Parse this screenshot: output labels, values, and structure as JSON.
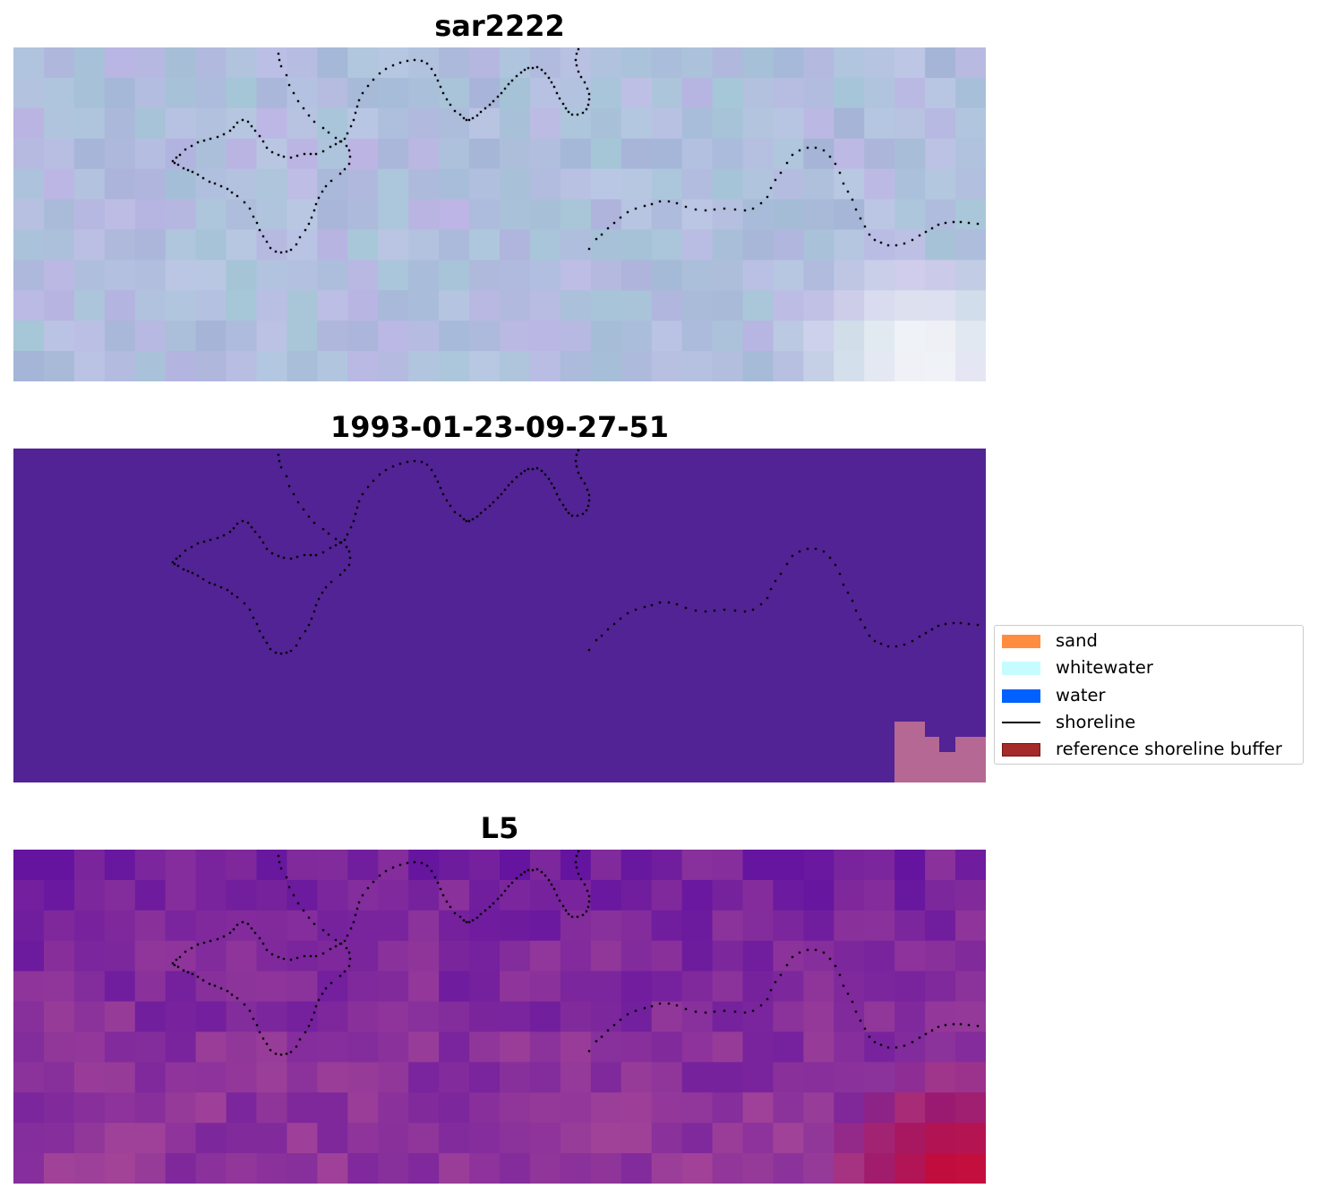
{
  "panels": [
    {
      "title": "sar2222",
      "style": "rgb-composite"
    },
    {
      "title": "1993-01-23-09-27-51",
      "style": "classification"
    },
    {
      "title": "L5",
      "style": "index"
    }
  ],
  "legend": {
    "items": [
      {
        "label": "sand",
        "kind": "patch",
        "color": "#ff8c40"
      },
      {
        "label": "whitewater",
        "kind": "patch",
        "color": "#c6fcfe"
      },
      {
        "label": "water",
        "kind": "patch",
        "color": "#0061ff"
      },
      {
        "label": "shoreline",
        "kind": "line",
        "color": "#000000"
      },
      {
        "label": "reference shoreline buffer",
        "kind": "patch",
        "color": "#a52a2a",
        "edge": "#7a1414"
      }
    ]
  },
  "colors": {
    "classification_background": "#522394",
    "buffer_overlay": "#b56893",
    "shoreline_dots": "#000000"
  }
}
